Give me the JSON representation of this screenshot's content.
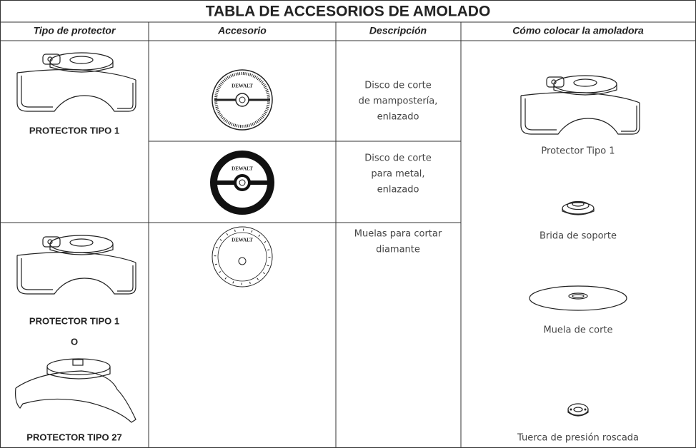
{
  "title": "TABLA DE ACCESORIOS DE AMOLADO",
  "headers": [
    "Tipo de protector",
    "Accesorio",
    "Descripción",
    "Cómo colocar la amoladora"
  ],
  "guards": [
    "PROTECTOR TIPO 1",
    "PROTECTOR TIPO 1",
    "O",
    "PROTECTOR TIPO 27"
  ],
  "logo": "DEWALT",
  "descriptions": [
    [
      "Disco de corte",
      "de mampostería,",
      "enlazado"
    ],
    [
      "Disco de corte",
      "para metal,",
      "enlazado"
    ],
    [
      "Muelas para cortar",
      "diamante"
    ]
  ],
  "assembly": [
    "Protector Tipo 1",
    "Brida de soporte",
    "Muela de corte",
    "Tuerca de presión roscada"
  ]
}
